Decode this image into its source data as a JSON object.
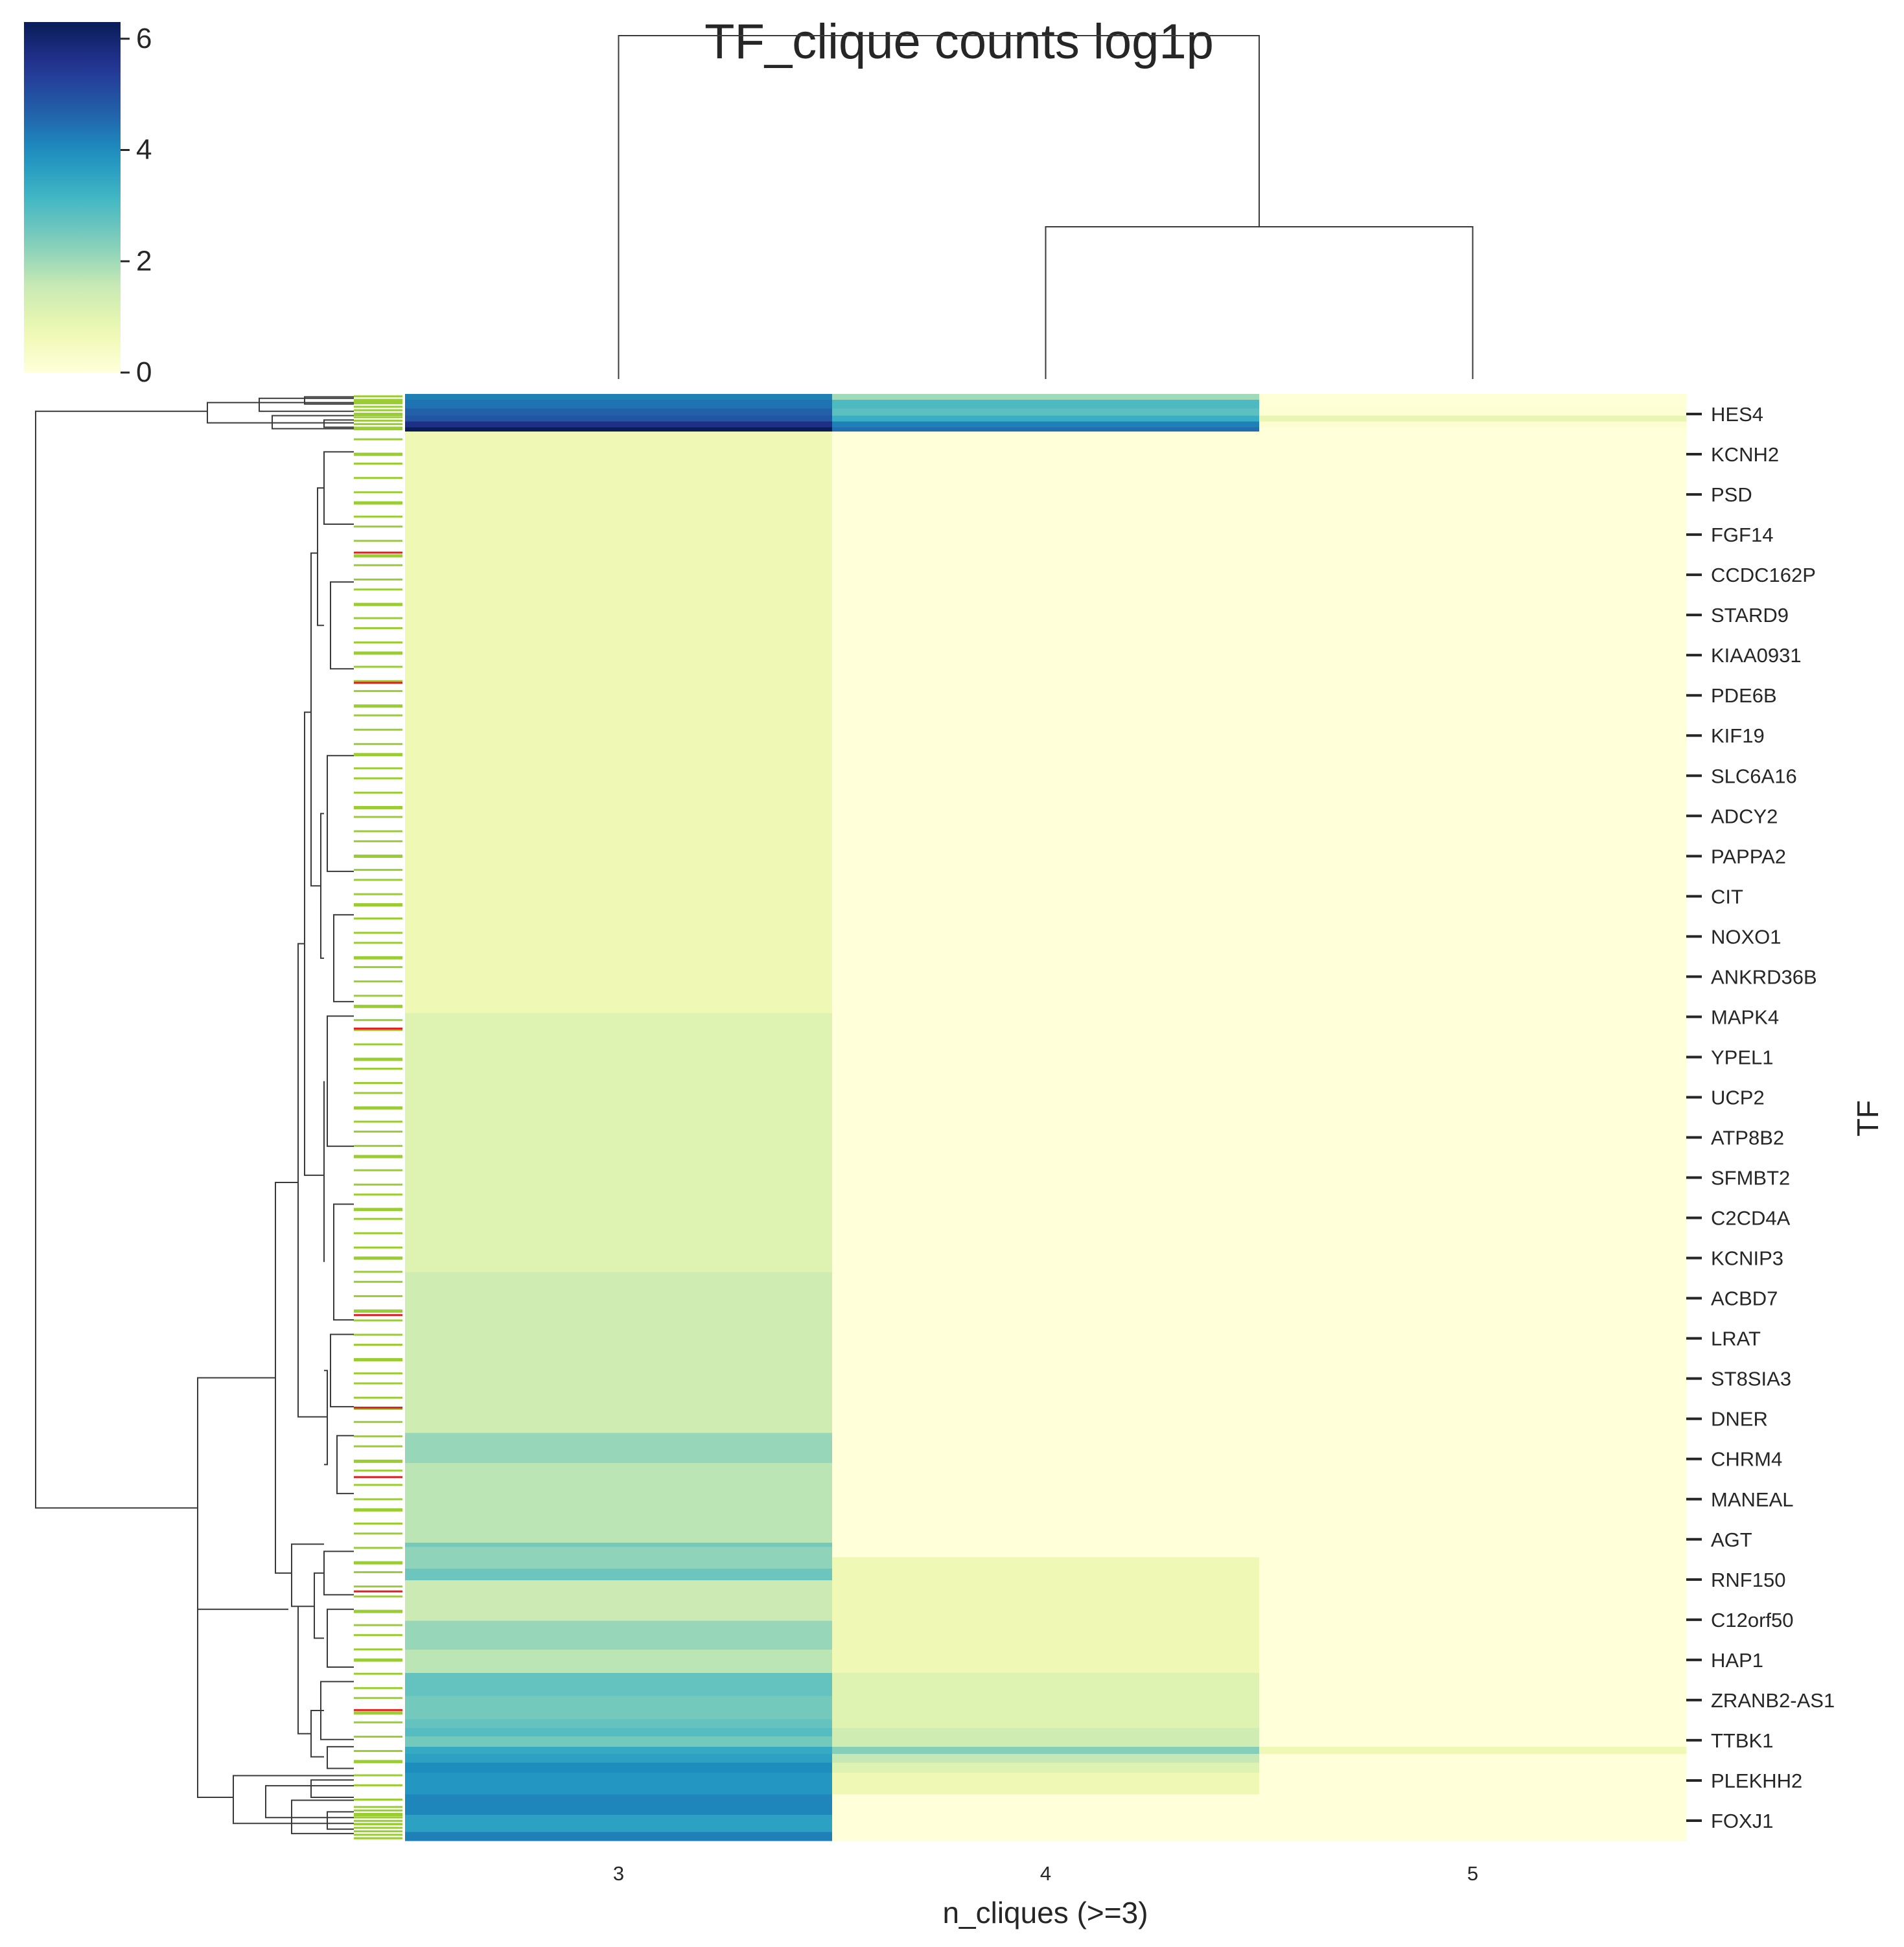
{
  "chart_data": {
    "type": "heatmap",
    "title": "TF_clique counts log1p",
    "xlabel": "n_cliques (>=3)",
    "ylabel": "TF",
    "columns": [
      "3",
      "4",
      "5"
    ],
    "row_tick_labels": [
      "HES4",
      "KCNH2",
      "PSD",
      "FGF14",
      "CCDC162P",
      "STARD9",
      "KIAA0931",
      "PDE6B",
      "KIF19",
      "SLC6A16",
      "ADCY2",
      "PAPPA2",
      "CIT",
      "NOXO1",
      "ANKRD36B",
      "MAPK4",
      "YPEL1",
      "UCP2",
      "ATP8B2",
      "SFMBT2",
      "C2CD4A",
      "KCNIP3",
      "ACBD7",
      "LRAT",
      "ST8SIA3",
      "DNER",
      "CHRM4",
      "MANEAL",
      "AGT",
      "RNF150",
      "C12orf50",
      "HAP1",
      "ZRANB2-AS1",
      "TTBK1",
      "PLEKHH2",
      "FOXJ1"
    ],
    "colorbar": {
      "min": 0,
      "max": 6.3,
      "ticks": [
        "0",
        "2",
        "4",
        "6"
      ],
      "colormap": "YlGnBu"
    },
    "row_blocks": [
      {
        "from": 0.0,
        "to": 0.004,
        "values": [
          4.2,
          2.0,
          0.05
        ]
      },
      {
        "from": 0.004,
        "to": 0.01,
        "values": [
          4.4,
          3.0,
          0.05
        ]
      },
      {
        "from": 0.01,
        "to": 0.015,
        "values": [
          4.7,
          2.8,
          0.1
        ]
      },
      {
        "from": 0.015,
        "to": 0.019,
        "values": [
          4.9,
          3.3,
          0.9
        ]
      },
      {
        "from": 0.019,
        "to": 0.023,
        "values": [
          5.7,
          4.2,
          0.15
        ]
      },
      {
        "from": 0.023,
        "to": 0.026,
        "values": [
          6.3,
          4.5,
          0.0
        ]
      },
      {
        "from": 0.026,
        "to": 0.428,
        "values": [
          0.7,
          0.0,
          0.0
        ]
      },
      {
        "from": 0.428,
        "to": 0.607,
        "values": [
          1.1,
          0.0,
          0.0
        ]
      },
      {
        "from": 0.607,
        "to": 0.718,
        "values": [
          1.4,
          0.0,
          0.0
        ]
      },
      {
        "from": 0.718,
        "to": 0.739,
        "values": [
          2.1,
          0.0,
          0.0
        ]
      },
      {
        "from": 0.739,
        "to": 0.794,
        "values": [
          1.7,
          0.0,
          0.0
        ]
      },
      {
        "from": 0.794,
        "to": 0.797,
        "values": [
          2.5,
          0.0,
          0.0
        ]
      },
      {
        "from": 0.797,
        "to": 0.804,
        "values": [
          2.2,
          0.0,
          0.0
        ]
      },
      {
        "from": 0.804,
        "to": 0.812,
        "values": [
          2.2,
          0.7,
          0.0
        ]
      },
      {
        "from": 0.812,
        "to": 0.82,
        "values": [
          2.6,
          0.7,
          0.0
        ]
      },
      {
        "from": 0.82,
        "to": 0.848,
        "values": [
          1.5,
          0.7,
          0.0
        ]
      },
      {
        "from": 0.848,
        "to": 0.868,
        "values": [
          2.1,
          0.7,
          0.0
        ]
      },
      {
        "from": 0.868,
        "to": 0.884,
        "values": [
          1.7,
          0.7,
          0.0
        ]
      },
      {
        "from": 0.884,
        "to": 0.9,
        "values": [
          2.7,
          1.1,
          0.0
        ]
      },
      {
        "from": 0.9,
        "to": 0.916,
        "values": [
          2.5,
          1.1,
          0.0
        ]
      },
      {
        "from": 0.916,
        "to": 0.922,
        "values": [
          2.7,
          1.1,
          0.0
        ]
      },
      {
        "from": 0.922,
        "to": 0.928,
        "values": [
          2.9,
          1.4,
          0.0
        ]
      },
      {
        "from": 0.928,
        "to": 0.935,
        "values": [
          2.5,
          1.4,
          0.0
        ]
      },
      {
        "from": 0.935,
        "to": 0.94,
        "values": [
          3.4,
          2.3,
          0.7
        ]
      },
      {
        "from": 0.94,
        "to": 0.946,
        "values": [
          3.6,
          1.6,
          0.0
        ]
      },
      {
        "from": 0.946,
        "to": 0.953,
        "values": [
          4.0,
          1.1,
          0.0
        ]
      },
      {
        "from": 0.953,
        "to": 0.968,
        "values": [
          3.8,
          0.7,
          0.0
        ]
      },
      {
        "from": 0.968,
        "to": 0.982,
        "values": [
          4.1,
          0.0,
          0.0
        ]
      },
      {
        "from": 0.982,
        "to": 0.994,
        "values": [
          3.6,
          0.0,
          0.0
        ]
      },
      {
        "from": 0.994,
        "to": 1.0,
        "values": [
          4.2,
          0.0,
          0.0
        ]
      }
    ],
    "row_colors": {
      "default": "#9acd32",
      "highlight": "#e02020",
      "highlight_rows": [
        0.109,
        0.199,
        0.438,
        0.636,
        0.7,
        0.748,
        0.827,
        0.909
      ]
    },
    "grid": false
  }
}
